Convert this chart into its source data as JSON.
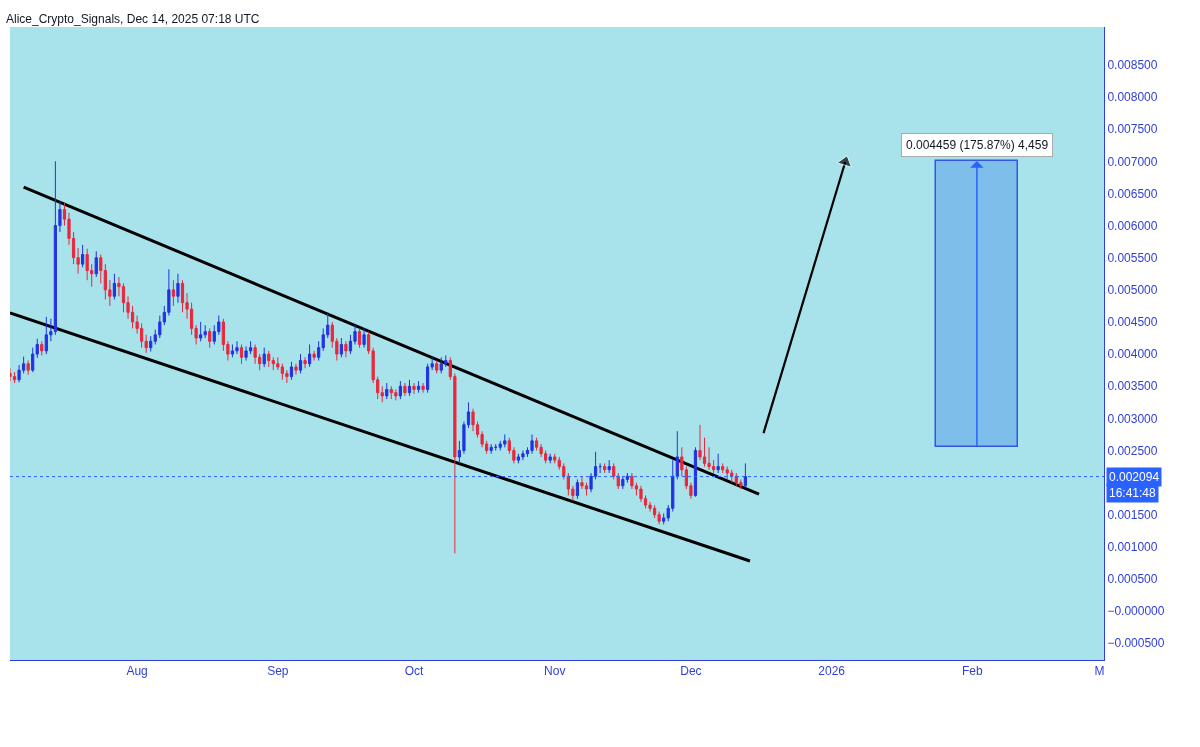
{
  "chart_data": {
    "type": "candlestick",
    "title": "Alice_Crypto_Signals, Dec 14, 2025 07:18 UTC",
    "xlim": [
      "2025-07-04",
      "2026-03-02"
    ],
    "xticks": [
      {
        "value": "2025-08-01",
        "label": "Aug"
      },
      {
        "value": "2025-09-01",
        "label": "Sep"
      },
      {
        "value": "2025-10-01",
        "label": "Oct"
      },
      {
        "value": "2025-11-01",
        "label": "Nov"
      },
      {
        "value": "2025-12-01",
        "label": "Dec"
      },
      {
        "value": "2026-01-01",
        "label": "2026"
      },
      {
        "value": "2026-02-01",
        "label": "Feb"
      },
      {
        "value": "2026-03-01",
        "label": "M"
      }
    ],
    "ylim": [
      -0.00076,
      0.00909
    ],
    "yticks": [
      {
        "value": 0.0085,
        "label": "0.008500"
      },
      {
        "value": 0.008,
        "label": "0.008000"
      },
      {
        "value": 0.0075,
        "label": "0.007500"
      },
      {
        "value": 0.007,
        "label": "0.007000"
      },
      {
        "value": 0.0065,
        "label": "0.006500"
      },
      {
        "value": 0.006,
        "label": "0.006000"
      },
      {
        "value": 0.0055,
        "label": "0.005500"
      },
      {
        "value": 0.005,
        "label": "0.005000"
      },
      {
        "value": 0.0045,
        "label": "0.004500"
      },
      {
        "value": 0.004,
        "label": "0.004000"
      },
      {
        "value": 0.0035,
        "label": "0.003500"
      },
      {
        "value": 0.003,
        "label": "0.003000"
      },
      {
        "value": 0.0025,
        "label": "0.002500"
      },
      {
        "value": 0.0015,
        "label": "0.001500"
      },
      {
        "value": 0.001,
        "label": "0.001000"
      },
      {
        "value": 0.0005,
        "label": "0.000500"
      },
      {
        "value": 0,
        "label": "−0.000000"
      },
      {
        "value": -0.0005,
        "label": "−0.000500"
      }
    ],
    "grid": false,
    "ref_lines": [
      {
        "axis": "y",
        "value": 0.002094,
        "label": "0.002094",
        "color": "#2962ff",
        "line_style": "dotted"
      }
    ],
    "annotations": [
      "16:41:48"
    ],
    "series": [
      {
        "x": [
          "2025-07-04",
          "2025-07-05",
          "2025-07-06",
          "2025-07-07",
          "2025-07-08",
          "2025-07-09",
          "2025-07-10",
          "2025-07-11",
          "2025-07-12",
          "2025-07-13",
          "2025-07-14",
          "2025-07-15",
          "2025-07-16",
          "2025-07-17",
          "2025-07-18",
          "2025-07-19",
          "2025-07-20",
          "2025-07-21",
          "2025-07-22",
          "2025-07-23",
          "2025-07-24",
          "2025-07-25",
          "2025-07-26",
          "2025-07-27",
          "2025-07-28",
          "2025-07-29",
          "2025-07-30",
          "2025-07-31",
          "2025-08-01",
          "2025-08-02",
          "2025-08-03",
          "2025-08-04",
          "2025-08-05",
          "2025-08-06",
          "2025-08-07",
          "2025-08-08",
          "2025-08-09",
          "2025-08-10",
          "2025-08-11",
          "2025-08-12",
          "2025-08-13",
          "2025-08-14",
          "2025-08-15",
          "2025-08-16",
          "2025-08-17",
          "2025-08-18",
          "2025-08-19",
          "2025-08-20",
          "2025-08-21",
          "2025-08-22",
          "2025-08-23",
          "2025-08-24",
          "2025-08-25",
          "2025-08-26",
          "2025-08-27",
          "2025-08-28",
          "2025-08-29",
          "2025-08-30",
          "2025-08-31",
          "2025-09-01",
          "2025-09-02",
          "2025-09-03",
          "2025-09-04",
          "2025-09-05",
          "2025-09-06",
          "2025-09-07",
          "2025-09-08",
          "2025-09-09",
          "2025-09-10",
          "2025-09-11",
          "2025-09-12",
          "2025-09-13",
          "2025-09-14",
          "2025-09-15",
          "2025-09-16",
          "2025-09-17",
          "2025-09-18",
          "2025-09-19",
          "2025-09-20",
          "2025-09-21",
          "2025-09-22",
          "2025-09-23",
          "2025-09-24",
          "2025-09-25",
          "2025-09-26",
          "2025-09-27",
          "2025-09-28",
          "2025-09-29",
          "2025-09-30",
          "2025-10-01",
          "2025-10-02",
          "2025-10-03",
          "2025-10-04",
          "2025-10-05",
          "2025-10-06",
          "2025-10-07",
          "2025-10-08",
          "2025-10-09",
          "2025-10-10",
          "2025-10-11",
          "2025-10-12",
          "2025-10-13",
          "2025-10-14",
          "2025-10-15",
          "2025-10-16",
          "2025-10-17",
          "2025-10-18",
          "2025-10-19",
          "2025-10-20",
          "2025-10-21",
          "2025-10-22",
          "2025-10-23",
          "2025-10-24",
          "2025-10-25",
          "2025-10-26",
          "2025-10-27",
          "2025-10-28",
          "2025-10-29",
          "2025-10-30",
          "2025-10-31",
          "2025-11-01",
          "2025-11-02",
          "2025-11-03",
          "2025-11-04",
          "2025-11-05",
          "2025-11-06",
          "2025-11-07",
          "2025-11-08",
          "2025-11-09",
          "2025-11-10",
          "2025-11-11",
          "2025-11-12",
          "2025-11-13",
          "2025-11-14",
          "2025-11-15",
          "2025-11-16",
          "2025-11-17",
          "2025-11-18",
          "2025-11-19",
          "2025-11-20",
          "2025-11-21",
          "2025-11-22",
          "2025-11-23",
          "2025-11-24",
          "2025-11-25",
          "2025-11-26",
          "2025-11-27",
          "2025-11-28",
          "2025-11-29",
          "2025-11-30",
          "2025-12-01",
          "2025-12-02",
          "2025-12-03",
          "2025-12-04",
          "2025-12-05",
          "2025-12-06",
          "2025-12-07",
          "2025-12-08",
          "2025-12-09",
          "2025-12-10",
          "2025-12-11",
          "2025-12-12",
          "2025-12-13"
        ],
        "ohlc": [
          [
            0.0037,
            0.00378,
            0.00358,
            0.00365
          ],
          [
            0.00365,
            0.00372,
            0.00355,
            0.0036
          ],
          [
            0.0036,
            0.00383,
            0.00356,
            0.00375
          ],
          [
            0.00375,
            0.00396,
            0.0037,
            0.00385
          ],
          [
            0.00385,
            0.0039,
            0.00368,
            0.00375
          ],
          [
            0.00375,
            0.0041,
            0.00372,
            0.004
          ],
          [
            0.004,
            0.00424,
            0.00394,
            0.00415
          ],
          [
            0.00415,
            0.0042,
            0.00398,
            0.00405
          ],
          [
            0.00405,
            0.00458,
            0.004,
            0.0043
          ],
          [
            0.0043,
            0.00455,
            0.0042,
            0.00435
          ],
          [
            0.00435,
            0.007,
            0.0043,
            0.006
          ],
          [
            0.006,
            0.00638,
            0.0059,
            0.00625
          ],
          [
            0.00625,
            0.00635,
            0.006,
            0.0061
          ],
          [
            0.0061,
            0.0062,
            0.0057,
            0.0058
          ],
          [
            0.0058,
            0.0059,
            0.0054,
            0.0055
          ],
          [
            0.0055,
            0.00565,
            0.00525,
            0.0054
          ],
          [
            0.0054,
            0.0057,
            0.00535,
            0.00555
          ],
          [
            0.00555,
            0.00564,
            0.00515,
            0.0053
          ],
          [
            0.0053,
            0.0054,
            0.00505,
            0.00525
          ],
          [
            0.00525,
            0.0056,
            0.0052,
            0.0055
          ],
          [
            0.0055,
            0.00555,
            0.0051,
            0.0053
          ],
          [
            0.0053,
            0.0054,
            0.00485,
            0.005
          ],
          [
            0.005,
            0.00515,
            0.00475,
            0.0049
          ],
          [
            0.0049,
            0.00525,
            0.00485,
            0.0051
          ],
          [
            0.0051,
            0.0052,
            0.0049,
            0.00505
          ],
          [
            0.00505,
            0.0051,
            0.00465,
            0.0048
          ],
          [
            0.0048,
            0.0049,
            0.00455,
            0.00465
          ],
          [
            0.00465,
            0.00475,
            0.0044,
            0.0045
          ],
          [
            0.0045,
            0.0046,
            0.00432,
            0.0044
          ],
          [
            0.0044,
            0.00448,
            0.0041,
            0.0042
          ],
          [
            0.0042,
            0.0043,
            0.00402,
            0.0041
          ],
          [
            0.0041,
            0.00428,
            0.00404,
            0.0042
          ],
          [
            0.0042,
            0.00438,
            0.00415,
            0.0043
          ],
          [
            0.0043,
            0.0046,
            0.00425,
            0.0045
          ],
          [
            0.0045,
            0.00475,
            0.00445,
            0.00465
          ],
          [
            0.00465,
            0.00532,
            0.0046,
            0.005
          ],
          [
            0.005,
            0.00515,
            0.00475,
            0.0049
          ],
          [
            0.0049,
            0.00525,
            0.0048,
            0.0051
          ],
          [
            0.0051,
            0.00515,
            0.00465,
            0.0048
          ],
          [
            0.0048,
            0.00495,
            0.00455,
            0.0047
          ],
          [
            0.0047,
            0.0048,
            0.0043,
            0.0044
          ],
          [
            0.0044,
            0.00445,
            0.00415,
            0.00425
          ],
          [
            0.00425,
            0.0045,
            0.0042,
            0.0043
          ],
          [
            0.0043,
            0.00445,
            0.00425,
            0.00435
          ],
          [
            0.00435,
            0.0044,
            0.0041,
            0.0042
          ],
          [
            0.0042,
            0.00445,
            0.00415,
            0.00435
          ],
          [
            0.00435,
            0.0046,
            0.0043,
            0.0045
          ],
          [
            0.0045,
            0.00455,
            0.00405,
            0.00415
          ],
          [
            0.00415,
            0.0042,
            0.0039,
            0.004
          ],
          [
            0.004,
            0.00415,
            0.00395,
            0.00405
          ],
          [
            0.00405,
            0.0042,
            0.004,
            0.0041
          ],
          [
            0.0041,
            0.00415,
            0.00385,
            0.00395
          ],
          [
            0.00395,
            0.00412,
            0.0039,
            0.00405
          ],
          [
            0.00405,
            0.0042,
            0.004,
            0.0041
          ],
          [
            0.0041,
            0.00415,
            0.00385,
            0.00395
          ],
          [
            0.00395,
            0.004,
            0.00375,
            0.00385
          ],
          [
            0.00385,
            0.0041,
            0.0038,
            0.004
          ],
          [
            0.004,
            0.00405,
            0.0038,
            0.0039
          ],
          [
            0.0039,
            0.00395,
            0.00375,
            0.00385
          ],
          [
            0.00385,
            0.00395,
            0.00375,
            0.0038
          ],
          [
            0.0038,
            0.00385,
            0.0036,
            0.0037
          ],
          [
            0.0037,
            0.00375,
            0.00355,
            0.00365
          ],
          [
            0.00365,
            0.00388,
            0.0036,
            0.0038
          ],
          [
            0.0038,
            0.00385,
            0.00368,
            0.00375
          ],
          [
            0.00375,
            0.004,
            0.0037,
            0.0039
          ],
          [
            0.0039,
            0.00395,
            0.00378,
            0.00385
          ],
          [
            0.00385,
            0.00415,
            0.0038,
            0.004
          ],
          [
            0.004,
            0.00405,
            0.0039,
            0.00395
          ],
          [
            0.00395,
            0.0042,
            0.0039,
            0.0041
          ],
          [
            0.0041,
            0.0044,
            0.00405,
            0.0043
          ],
          [
            0.0043,
            0.00465,
            0.00425,
            0.00445
          ],
          [
            0.00445,
            0.0045,
            0.0041,
            0.0042
          ],
          [
            0.0042,
            0.00425,
            0.0039,
            0.004
          ],
          [
            0.004,
            0.00425,
            0.00395,
            0.00415
          ],
          [
            0.00415,
            0.0042,
            0.00395,
            0.00405
          ],
          [
            0.00405,
            0.0043,
            0.004,
            0.0042
          ],
          [
            0.0042,
            0.00445,
            0.00415,
            0.00435
          ],
          [
            0.00435,
            0.0044,
            0.0041,
            0.00415
          ],
          [
            0.00415,
            0.0044,
            0.0041,
            0.0043
          ],
          [
            0.0043,
            0.00435,
            0.004,
            0.00405
          ],
          [
            0.00405,
            0.0041,
            0.00355,
            0.0036
          ],
          [
            0.0036,
            0.00365,
            0.0033,
            0.0034
          ],
          [
            0.0034,
            0.0035,
            0.00325,
            0.00335
          ],
          [
            0.00335,
            0.00355,
            0.0033,
            0.00345
          ],
          [
            0.00345,
            0.0035,
            0.0033,
            0.0034
          ],
          [
            0.0034,
            0.00345,
            0.00328,
            0.00335
          ],
          [
            0.00335,
            0.00358,
            0.0033,
            0.0035
          ],
          [
            0.0035,
            0.00355,
            0.00335,
            0.0034
          ],
          [
            0.0034,
            0.0036,
            0.00335,
            0.0035
          ],
          [
            0.0035,
            0.00355,
            0.00338,
            0.00345
          ],
          [
            0.00345,
            0.00358,
            0.0034,
            0.0035
          ],
          [
            0.0035,
            0.00355,
            0.0034,
            0.00345
          ],
          [
            0.00345,
            0.00385,
            0.0034,
            0.0038
          ],
          [
            0.0038,
            0.00395,
            0.00375,
            0.00385
          ],
          [
            0.00385,
            0.0039,
            0.0037,
            0.00375
          ],
          [
            0.00375,
            0.00395,
            0.0037,
            0.00385
          ],
          [
            0.00385,
            0.00398,
            0.0038,
            0.0039
          ],
          [
            0.0039,
            0.00395,
            0.0036,
            0.00365
          ],
          [
            0.00365,
            0.0037,
            0.0009,
            0.0024
          ],
          [
            0.0024,
            0.00265,
            0.0023,
            0.0025
          ],
          [
            0.0025,
            0.00295,
            0.00245,
            0.0029
          ],
          [
            0.0029,
            0.00325,
            0.00285,
            0.0031
          ],
          [
            0.0031,
            0.00315,
            0.0028,
            0.0029
          ],
          [
            0.0029,
            0.00295,
            0.0027,
            0.00275
          ],
          [
            0.00275,
            0.0028,
            0.00255,
            0.0026
          ],
          [
            0.0026,
            0.00265,
            0.00245,
            0.0025
          ],
          [
            0.0025,
            0.0026,
            0.00245,
            0.00255
          ],
          [
            0.00255,
            0.0026,
            0.0025,
            0.00255
          ],
          [
            0.00255,
            0.00265,
            0.0025,
            0.0026
          ],
          [
            0.0026,
            0.00275,
            0.00255,
            0.00265
          ],
          [
            0.00265,
            0.0027,
            0.00245,
            0.0025
          ],
          [
            0.0025,
            0.00255,
            0.0023,
            0.00235
          ],
          [
            0.00235,
            0.00245,
            0.0023,
            0.0024
          ],
          [
            0.0024,
            0.0025,
            0.00235,
            0.00245
          ],
          [
            0.00245,
            0.00255,
            0.0024,
            0.0025
          ],
          [
            0.0025,
            0.00275,
            0.00245,
            0.00265
          ],
          [
            0.00265,
            0.0027,
            0.0025,
            0.00255
          ],
          [
            0.00255,
            0.0026,
            0.0024,
            0.00245
          ],
          [
            0.00245,
            0.0025,
            0.0023,
            0.00235
          ],
          [
            0.00235,
            0.00245,
            0.0023,
            0.0024
          ],
          [
            0.0024,
            0.00245,
            0.0023,
            0.00235
          ],
          [
            0.00235,
            0.0024,
            0.0022,
            0.00225
          ],
          [
            0.00225,
            0.0023,
            0.00205,
            0.0021
          ],
          [
            0.0021,
            0.00215,
            0.0018,
            0.0019
          ],
          [
            0.0019,
            0.00195,
            0.00172,
            0.0018
          ],
          [
            0.0018,
            0.00205,
            0.00175,
            0.002
          ],
          [
            0.002,
            0.0021,
            0.0019,
            0.00195
          ],
          [
            0.00195,
            0.002,
            0.0018,
            0.0019
          ],
          [
            0.0019,
            0.00215,
            0.00185,
            0.0021
          ],
          [
            0.0021,
            0.00248,
            0.00205,
            0.00225
          ],
          [
            0.00225,
            0.0023,
            0.00215,
            0.00225
          ],
          [
            0.00225,
            0.0023,
            0.00215,
            0.0022
          ],
          [
            0.0022,
            0.00235,
            0.00215,
            0.00225
          ],
          [
            0.00225,
            0.0023,
            0.00205,
            0.0021
          ],
          [
            0.0021,
            0.00215,
            0.0019,
            0.00195
          ],
          [
            0.00195,
            0.0021,
            0.0019,
            0.00205
          ],
          [
            0.00205,
            0.00215,
            0.002,
            0.0021
          ],
          [
            0.0021,
            0.00215,
            0.0019,
            0.00195
          ],
          [
            0.00195,
            0.002,
            0.0018,
            0.0019
          ],
          [
            0.0019,
            0.00195,
            0.0017,
            0.00175
          ],
          [
            0.00175,
            0.0018,
            0.0016,
            0.00165
          ],
          [
            0.00165,
            0.0017,
            0.00155,
            0.0016
          ],
          [
            0.0016,
            0.00165,
            0.00145,
            0.0015
          ],
          [
            0.0015,
            0.00155,
            0.00135,
            0.0014
          ],
          [
            0.0014,
            0.00152,
            0.00135,
            0.00145
          ],
          [
            0.00145,
            0.00165,
            0.0014,
            0.0016
          ],
          [
            0.0016,
            0.00235,
            0.00155,
            0.0021
          ],
          [
            0.0021,
            0.0028,
            0.00205,
            0.0024
          ],
          [
            0.0024,
            0.00255,
            0.0021,
            0.0022
          ],
          [
            0.0022,
            0.00225,
            0.0019,
            0.00195
          ],
          [
            0.00195,
            0.002,
            0.00175,
            0.0018
          ],
          [
            0.0018,
            0.00255,
            0.00178,
            0.0025
          ],
          [
            0.0025,
            0.0029,
            0.00235,
            0.0024
          ],
          [
            0.0024,
            0.0027,
            0.00225,
            0.0023
          ],
          [
            0.0023,
            0.00255,
            0.0022,
            0.00225
          ],
          [
            0.00225,
            0.00235,
            0.00215,
            0.0022
          ],
          [
            0.0022,
            0.00245,
            0.00215,
            0.00225
          ],
          [
            0.00225,
            0.0023,
            0.00215,
            0.0022
          ],
          [
            0.0022,
            0.00225,
            0.00205,
            0.00215
          ],
          [
            0.00215,
            0.0022,
            0.002,
            0.0021
          ],
          [
            0.0021,
            0.00215,
            0.00195,
            0.002
          ],
          [
            0.002,
            0.00205,
            0.0019,
            0.00195
          ],
          [
            0.00195,
            0.0023,
            0.00192,
            0.002094
          ]
        ]
      },
      {
        "type": "line",
        "color": "#000000",
        "x": [
          "2025-07-07",
          "2025-12-16"
        ],
        "values": [
          0.0066,
          0.00182
        ]
      },
      {
        "type": "line",
        "color": "#000000",
        "x": [
          "2025-07-04",
          "2025-12-14"
        ],
        "values": [
          0.00464,
          0.00078
        ]
      },
      {
        "type": "line",
        "color": "#000000",
        "marker": "triangle",
        "x": [
          "2025-12-17",
          "2026-01-04"
        ],
        "values": [
          0.00277,
          0.00699
        ]
      },
      {
        "type": "bar",
        "color": "#7dbfea",
        "x": [
          "2026-02-02"
        ],
        "base": [
          0.002547
        ],
        "values": [
          0.004459
        ],
        "value_labels": [
          "0.004459 (175.87%) 4,459"
        ]
      }
    ]
  }
}
